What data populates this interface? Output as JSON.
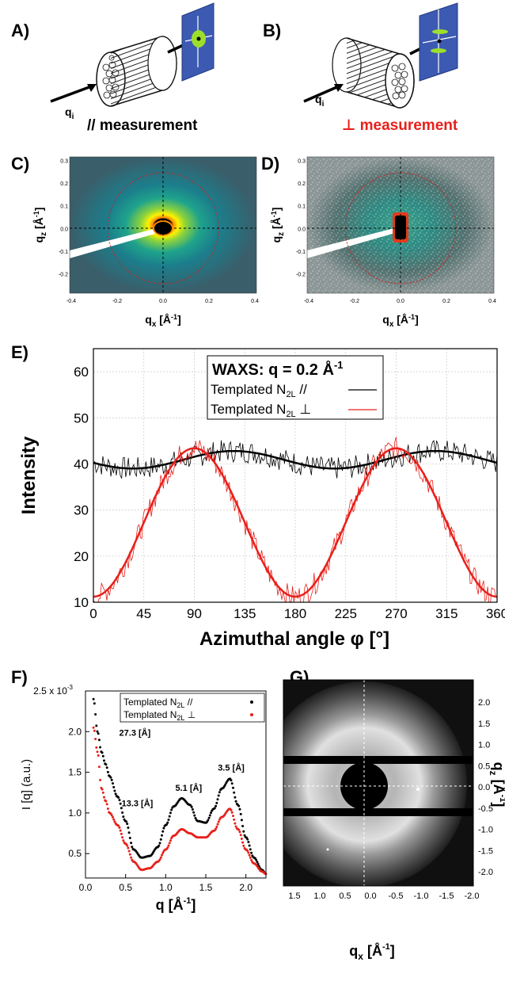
{
  "panels": {
    "A": {
      "letter": "A)",
      "qi_label": "q",
      "qi_sub": "i",
      "caption": "// measurement"
    },
    "B": {
      "letter": "B)",
      "qi_label": "q",
      "qi_sub": "i",
      "caption": "⊥ measurement",
      "caption_color": "#e8201a"
    },
    "C": {
      "letter": "C)",
      "ylabel": "q",
      "ylabel_sub": "z",
      "ylabel_unit": " [Å",
      "ylabel_unit_close": "]",
      "xlabel": "q",
      "xlabel_sub": "x",
      "xlabel_unit": " [Å",
      "xlabel_unit_close": "]",
      "exp": "-1",
      "y_ticks": [
        "0.3",
        "0.2",
        "0.1",
        "0.0",
        "-0.1",
        "-0.2"
      ],
      "x_ticks": [
        "-0.4",
        "-0.2",
        "0.0",
        "0.2",
        "0.4"
      ]
    },
    "D": {
      "letter": "D)",
      "ylabel": "q",
      "ylabel_sub": "z",
      "ylabel_unit": " [Å",
      "ylabel_unit_close": "]",
      "xlabel": "q",
      "xlabel_sub": "x",
      "xlabel_unit": " [Å",
      "xlabel_unit_close": "]",
      "exp": "-1",
      "y_ticks": [
        "0.3",
        "0.2",
        "0.1",
        "0.0",
        "-0.1",
        "-0.2"
      ],
      "x_ticks": [
        "-0.4",
        "-0.2",
        "0.0",
        "0.2",
        "0.4"
      ]
    },
    "E": {
      "letter": "E)"
    },
    "F": {
      "letter": "F)"
    },
    "G": {
      "letter": "G)",
      "x_ticks": [
        "1.5",
        "1.0",
        "0.5",
        "0.0",
        "-0.5",
        "-1.0",
        "-1.5",
        "-2.0"
      ],
      "y_ticks": [
        "2.0",
        "1.5",
        "1.0",
        "0.5",
        "0.0",
        "-0.5",
        "-1.0",
        "-1.5",
        "-2.0"
      ],
      "xlabel": "q",
      "xlabel_sub": "x",
      "xlabel_unit": " [Å",
      "xlabel_unit_close": "]",
      "ylabel": "q",
      "ylabel_sub": "z",
      "ylabel_unit": " [Å",
      "ylabel_unit_close": "]",
      "exp": "-1"
    }
  },
  "chart_data": [
    {
      "panel": "E",
      "type": "line",
      "xlabel": "Azimuthal angle φ [°]",
      "ylabel": "Intensity",
      "xlim": [
        0,
        360
      ],
      "ylim": [
        10,
        65
      ],
      "x_ticks": [
        0,
        45,
        90,
        135,
        180,
        225,
        270,
        315,
        360
      ],
      "y_ticks": [
        10,
        20,
        30,
        40,
        50,
        60
      ],
      "grid": true,
      "legend": {
        "placement": "top-center",
        "title_prefix": "WAXS:  q = 0.2 Å",
        "title_exp": "-1"
      },
      "series": [
        {
          "name": "Templated N",
          "name_sub": "2L",
          "name_suffix": " //",
          "color": "#000000",
          "fit": {
            "mean": 40.9,
            "amplitude": 1.9,
            "period_deg": 180,
            "peak_deg": 125
          },
          "noise_amplitude": 2.5
        },
        {
          "name": "Templated N",
          "name_sub": "2L",
          "name_suffix": " ⊥",
          "color": "#e8201a",
          "fit": {
            "mean": 27.3,
            "amplitude": 16.1,
            "period_deg": 180,
            "peak_deg": 90
          },
          "noise_amplitude": 2.5
        }
      ]
    },
    {
      "panel": "F",
      "type": "scatter",
      "xlabel": "q [Å",
      "xlabel_exp": "-1",
      "xlabel_close": "]",
      "ylabel": "I [q] (a.u.)",
      "xlim": [
        0,
        2.25
      ],
      "ylim": [
        0.2,
        2.5
      ],
      "x_ticks": [
        "0.0",
        "0.5",
        "1.0",
        "1.5",
        "2.0"
      ],
      "y_ticks": [
        "0.5",
        "1.0",
        "1.5",
        "2.0",
        "2.5 x 10"
      ],
      "y_ticks_exp": "-3",
      "legend": {
        "placement": "top-right"
      },
      "annotations": [
        "27.3 [Å]",
        "13.3 [Å]",
        "5.1 [Å]",
        "3.5 [Å]"
      ],
      "series": [
        {
          "name": "Templated N",
          "name_sub": "2L",
          "name_suffix": " //",
          "color": "#000000",
          "x": [
            0.1,
            0.15,
            0.2,
            0.25,
            0.3,
            0.4,
            0.5,
            0.6,
            0.7,
            0.8,
            0.9,
            1.0,
            1.1,
            1.2,
            1.3,
            1.4,
            1.5,
            1.6,
            1.7,
            1.8,
            1.9,
            2.0,
            2.1,
            2.2,
            2.25
          ],
          "y": [
            2.4,
            2.0,
            1.75,
            1.6,
            1.45,
            1.2,
            0.9,
            0.55,
            0.45,
            0.47,
            0.58,
            0.85,
            1.08,
            1.18,
            1.1,
            0.9,
            0.88,
            1.05,
            1.3,
            1.42,
            1.1,
            0.7,
            0.45,
            0.3,
            0.25
          ]
        },
        {
          "name": "Templated N",
          "name_sub": "2L",
          "name_suffix": " ⊥",
          "color": "#e8201a",
          "x": [
            0.1,
            0.15,
            0.2,
            0.25,
            0.3,
            0.4,
            0.5,
            0.6,
            0.7,
            0.8,
            0.9,
            1.0,
            1.1,
            1.2,
            1.3,
            1.4,
            1.5,
            1.6,
            1.7,
            1.8,
            1.9,
            2.0,
            2.1,
            2.2,
            2.25
          ],
          "y": [
            2.05,
            1.75,
            1.3,
            1.15,
            1.0,
            0.85,
            0.62,
            0.4,
            0.3,
            0.32,
            0.4,
            0.55,
            0.72,
            0.8,
            0.75,
            0.7,
            0.7,
            0.78,
            0.95,
            1.05,
            0.8,
            0.55,
            0.38,
            0.28,
            0.25
          ]
        }
      ]
    }
  ]
}
